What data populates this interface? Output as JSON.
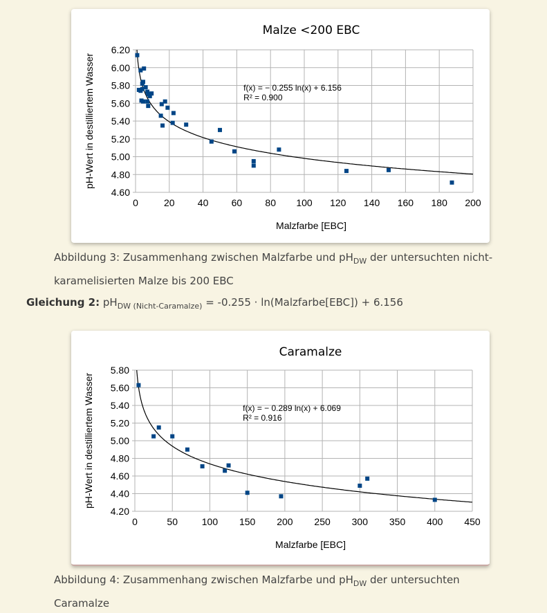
{
  "caption1": {
    "prefix": "Abbildung 3: Zusammenhang zwischen Malzfarbe und pH",
    "sub": "DW",
    "suffix": " der untersuchten nicht-karamelisierten Malze bis 200 EBC"
  },
  "equation": {
    "label": "Gleichung 2:",
    "ph": "pH",
    "sub": "DW (Nicht-Caramalze)",
    "rest": " = -0.255 · ln(Malzfarbe[EBC]) + 6.156"
  },
  "caption2": {
    "prefix": "Abbildung 4: Zusammenhang zwischen Malzfarbe und pH",
    "sub": "DW",
    "suffix": " der untersuchten Caramalze"
  },
  "chart_data": [
    {
      "type": "scatter",
      "title": "Malze <200 EBC",
      "xlabel": "Malzfarbe [EBC]",
      "ylabel": "pH-Wert in destilliertem Wasser",
      "xlim": [
        0,
        200
      ],
      "ylim": [
        4.6,
        6.2
      ],
      "xticks": [
        0,
        20,
        40,
        60,
        80,
        100,
        120,
        140,
        160,
        180,
        200
      ],
      "yticks": [
        "4.60",
        "4.80",
        "5.00",
        "5.20",
        "5.40",
        "5.60",
        "5.80",
        "6.00",
        "6.20"
      ],
      "grid": true,
      "trendline": {
        "a": -0.255,
        "b": 6.156,
        "label": "f(x) = − 0.255 ln(x) + 6.156",
        "r2": "R² = 0.900"
      },
      "points": [
        [
          1,
          6.14
        ],
        [
          3,
          5.97
        ],
        [
          5,
          5.99
        ],
        [
          2,
          5.75
        ],
        [
          3,
          5.74
        ],
        [
          4,
          5.76
        ],
        [
          4,
          5.82
        ],
        [
          4.5,
          5.84
        ],
        [
          6,
          5.78
        ],
        [
          7,
          5.73
        ],
        [
          7.5,
          5.7
        ],
        [
          8.5,
          5.68
        ],
        [
          9.5,
          5.71
        ],
        [
          3.5,
          5.63
        ],
        [
          4.5,
          5.62
        ],
        [
          7,
          5.62
        ],
        [
          7.5,
          5.57
        ],
        [
          15.5,
          5.59
        ],
        [
          17.5,
          5.62
        ],
        [
          19,
          5.55
        ],
        [
          22.5,
          5.49
        ],
        [
          15,
          5.46
        ],
        [
          16,
          5.35
        ],
        [
          22,
          5.38
        ],
        [
          30,
          5.36
        ],
        [
          50,
          5.3
        ],
        [
          45,
          5.17
        ],
        [
          58.6,
          5.06
        ],
        [
          70,
          4.95
        ],
        [
          70,
          4.9
        ],
        [
          85,
          5.08
        ],
        [
          125,
          4.84
        ],
        [
          150,
          4.85
        ],
        [
          187.5,
          4.71
        ]
      ]
    },
    {
      "type": "scatter",
      "title": "Caramalze",
      "xlabel": "Malzfarbe [EBC]",
      "ylabel": "pH-Wert in destilliertem Wasser",
      "xlim": [
        0,
        450
      ],
      "ylim": [
        4.2,
        5.8
      ],
      "xticks": [
        0,
        50,
        100,
        150,
        200,
        250,
        300,
        350,
        400,
        450
      ],
      "yticks": [
        "4.20",
        "4.40",
        "4.60",
        "4.80",
        "5.00",
        "5.20",
        "5.40",
        "5.60",
        "5.80"
      ],
      "grid": true,
      "trendline": {
        "a": -0.289,
        "b": 6.069,
        "label": "f(x) = − 0.289 ln(x) + 6.069",
        "r2": "R² = 0.916"
      },
      "points": [
        [
          5,
          5.63
        ],
        [
          25,
          5.05
        ],
        [
          32,
          5.15
        ],
        [
          50,
          5.05
        ],
        [
          70,
          4.9
        ],
        [
          90,
          4.71
        ],
        [
          120,
          4.66
        ],
        [
          125,
          4.72
        ],
        [
          150,
          4.41
        ],
        [
          195,
          4.37
        ],
        [
          300,
          4.49
        ],
        [
          310,
          4.57
        ],
        [
          400,
          4.33
        ]
      ]
    }
  ]
}
